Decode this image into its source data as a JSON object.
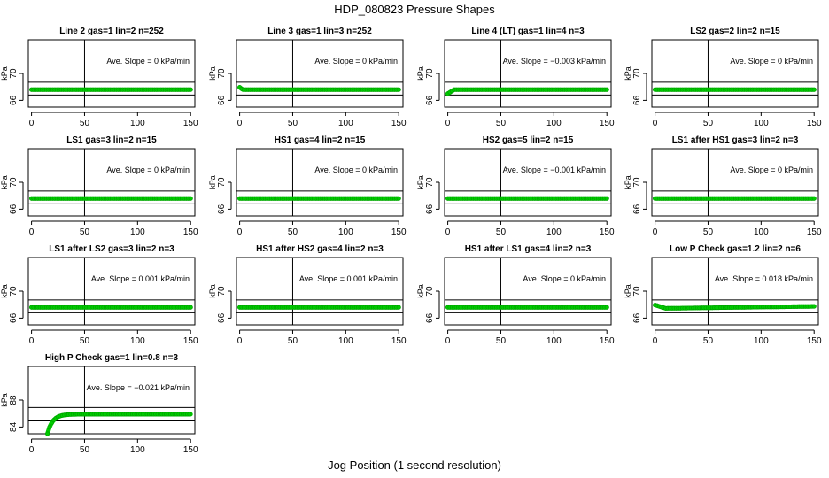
{
  "figure": {
    "title": "HDP_080823  Pressure Shapes",
    "xlabel": "Jog Position (1 second resolution)",
    "point_color": "#00cc00",
    "point_edge_color": "#009900"
  },
  "chart_data": [
    {
      "type": "scatter",
      "title": "Line 2 gas=1 lin=2 n=252",
      "ylabel": "kPa",
      "slope_label": "Ave. Slope = ",
      "slope_value": "0",
      "slope_unit": "kPa/min",
      "xlim": [
        -3,
        154
      ],
      "ylim": [
        65,
        75
      ],
      "xticks": [
        0,
        50,
        100,
        150
      ],
      "yticks": [
        66,
        70
      ],
      "hlines": [
        66.8,
        68.7
      ],
      "vline": 50,
      "x": [
        0,
        150
      ],
      "y": [
        67.6,
        67.6
      ],
      "shape": "flat"
    },
    {
      "type": "scatter",
      "title": "Line 3 gas=1 lin=3 n=252",
      "ylabel": "kPa",
      "slope_label": "Ave. Slope = ",
      "slope_value": "0",
      "slope_unit": "kPa/min",
      "xlim": [
        -3,
        154
      ],
      "ylim": [
        65,
        75
      ],
      "xticks": [
        0,
        50,
        100,
        150
      ],
      "yticks": [
        66,
        70
      ],
      "hlines": [
        66.8,
        68.7
      ],
      "vline": 50,
      "x": [
        0,
        150
      ],
      "y": [
        67.6,
        67.6
      ],
      "shape": "dip_start"
    },
    {
      "type": "scatter",
      "title": "Line 4 (LT) gas=1 lin=4 n=3",
      "ylabel": "kPa",
      "slope_label": "Ave. Slope = ",
      "slope_value": "−0.003",
      "slope_unit": "kPa/min",
      "xlim": [
        -3,
        154
      ],
      "ylim": [
        65,
        75
      ],
      "xticks": [
        0,
        50,
        100,
        150
      ],
      "yticks": [
        66,
        70
      ],
      "hlines": [
        66.8,
        68.7
      ],
      "vline": 50,
      "x": [
        0,
        150
      ],
      "y": [
        67.6,
        67.6
      ],
      "shape": "rise_start"
    },
    {
      "type": "scatter",
      "title": "LS2 gas=2 lin=2 n=15",
      "ylabel": "kPa",
      "slope_label": "Ave. Slope = ",
      "slope_value": "0",
      "slope_unit": "kPa/min",
      "xlim": [
        -3,
        154
      ],
      "ylim": [
        65,
        75
      ],
      "xticks": [
        0,
        50,
        100,
        150
      ],
      "yticks": [
        66,
        70
      ],
      "hlines": [
        66.8,
        68.7
      ],
      "vline": 50,
      "x": [
        0,
        150
      ],
      "y": [
        67.6,
        67.6
      ],
      "shape": "flat"
    },
    {
      "type": "scatter",
      "title": "LS1 gas=3 lin=2 n=15",
      "ylabel": "kPa",
      "slope_label": "Ave. Slope = ",
      "slope_value": "0",
      "slope_unit": "kPa/min",
      "xlim": [
        -3,
        154
      ],
      "ylim": [
        65,
        75
      ],
      "xticks": [
        0,
        50,
        100,
        150
      ],
      "yticks": [
        66,
        70
      ],
      "hlines": [
        66.8,
        68.7
      ],
      "vline": 50,
      "x": [
        0,
        150
      ],
      "y": [
        67.6,
        67.6
      ],
      "shape": "flat"
    },
    {
      "type": "scatter",
      "title": "HS1 gas=4 lin=2 n=15",
      "ylabel": "kPa",
      "slope_label": "Ave. Slope = ",
      "slope_value": "0",
      "slope_unit": "kPa/min",
      "xlim": [
        -3,
        154
      ],
      "ylim": [
        65,
        75
      ],
      "xticks": [
        0,
        50,
        100,
        150
      ],
      "yticks": [
        66,
        70
      ],
      "hlines": [
        66.8,
        68.7
      ],
      "vline": 50,
      "x": [
        0,
        150
      ],
      "y": [
        67.6,
        67.6
      ],
      "shape": "flat"
    },
    {
      "type": "scatter",
      "title": "HS2 gas=5 lin=2 n=15",
      "ylabel": "kPa",
      "slope_label": "Ave. Slope = ",
      "slope_value": "−0.001",
      "slope_unit": "kPa/min",
      "xlim": [
        -3,
        154
      ],
      "ylim": [
        65,
        75
      ],
      "xticks": [
        0,
        50,
        100,
        150
      ],
      "yticks": [
        66,
        70
      ],
      "hlines": [
        66.8,
        68.7
      ],
      "vline": 50,
      "x": [
        0,
        150
      ],
      "y": [
        67.6,
        67.6
      ],
      "shape": "flat"
    },
    {
      "type": "scatter",
      "title": "LS1 after HS1 gas=3 lin=2 n=3",
      "ylabel": "kPa",
      "slope_label": "Ave. Slope = ",
      "slope_value": "0",
      "slope_unit": "kPa/min",
      "xlim": [
        -3,
        154
      ],
      "ylim": [
        65,
        75
      ],
      "xticks": [
        0,
        50,
        100,
        150
      ],
      "yticks": [
        66,
        70
      ],
      "hlines": [
        66.8,
        68.7
      ],
      "vline": 50,
      "x": [
        0,
        150
      ],
      "y": [
        67.6,
        67.6
      ],
      "shape": "flat"
    },
    {
      "type": "scatter",
      "title": "LS1 after LS2 gas=3 lin=2 n=3",
      "ylabel": "kPa",
      "slope_label": "Ave. Slope = ",
      "slope_value": "0.001",
      "slope_unit": "kPa/min",
      "xlim": [
        -3,
        154
      ],
      "ylim": [
        65,
        75
      ],
      "xticks": [
        0,
        50,
        100,
        150
      ],
      "yticks": [
        66,
        70
      ],
      "hlines": [
        66.8,
        68.7
      ],
      "vline": 50,
      "x": [
        0,
        150
      ],
      "y": [
        67.6,
        67.6
      ],
      "shape": "flat"
    },
    {
      "type": "scatter",
      "title": "HS1 after HS2 gas=4 lin=2 n=3",
      "ylabel": "kPa",
      "slope_label": "Ave. Slope = ",
      "slope_value": "0.001",
      "slope_unit": "kPa/min",
      "xlim": [
        -3,
        154
      ],
      "ylim": [
        65,
        75
      ],
      "xticks": [
        0,
        50,
        100,
        150
      ],
      "yticks": [
        66,
        70
      ],
      "hlines": [
        66.8,
        68.7
      ],
      "vline": 50,
      "x": [
        0,
        150
      ],
      "y": [
        67.6,
        67.6
      ],
      "shape": "flat"
    },
    {
      "type": "scatter",
      "title": "HS1 after LS1 gas=4 lin=2 n=3",
      "ylabel": "kPa",
      "slope_label": "Ave. Slope = ",
      "slope_value": "0",
      "slope_unit": "kPa/min",
      "xlim": [
        -3,
        154
      ],
      "ylim": [
        65,
        75
      ],
      "xticks": [
        0,
        50,
        100,
        150
      ],
      "yticks": [
        66,
        70
      ],
      "hlines": [
        66.8,
        68.7
      ],
      "vline": 50,
      "x": [
        0,
        150
      ],
      "y": [
        67.6,
        67.6
      ],
      "shape": "flat"
    },
    {
      "type": "scatter",
      "title": "Low P Check gas=1.2 lin=2 n=6",
      "ylabel": "kPa",
      "slope_label": "Ave. Slope = ",
      "slope_value": "0.018",
      "slope_unit": "kPa/min",
      "xlim": [
        -3,
        154
      ],
      "ylim": [
        65,
        75
      ],
      "xticks": [
        0,
        50,
        100,
        150
      ],
      "yticks": [
        66,
        70
      ],
      "hlines": [
        66.8,
        68.7
      ],
      "vline": 50,
      "x": [
        0,
        150
      ],
      "y": [
        67.6,
        67.6
      ],
      "shape": "lowp"
    },
    {
      "type": "scatter",
      "title": "High P Check gas=1 lin=0.8 n=3",
      "ylabel": "kPa",
      "slope_label": "Ave. Slope = ",
      "slope_value": "−0.021",
      "slope_unit": "kPa/min",
      "xlim": [
        -3,
        154
      ],
      "ylim": [
        83,
        93
      ],
      "xticks": [
        0,
        50,
        100,
        150
      ],
      "yticks": [
        84,
        88
      ],
      "hlines": [
        84.9,
        86.9
      ],
      "vline": 50,
      "x": [
        15,
        150
      ],
      "y": [
        83,
        85.9
      ],
      "shape": "highp"
    }
  ]
}
